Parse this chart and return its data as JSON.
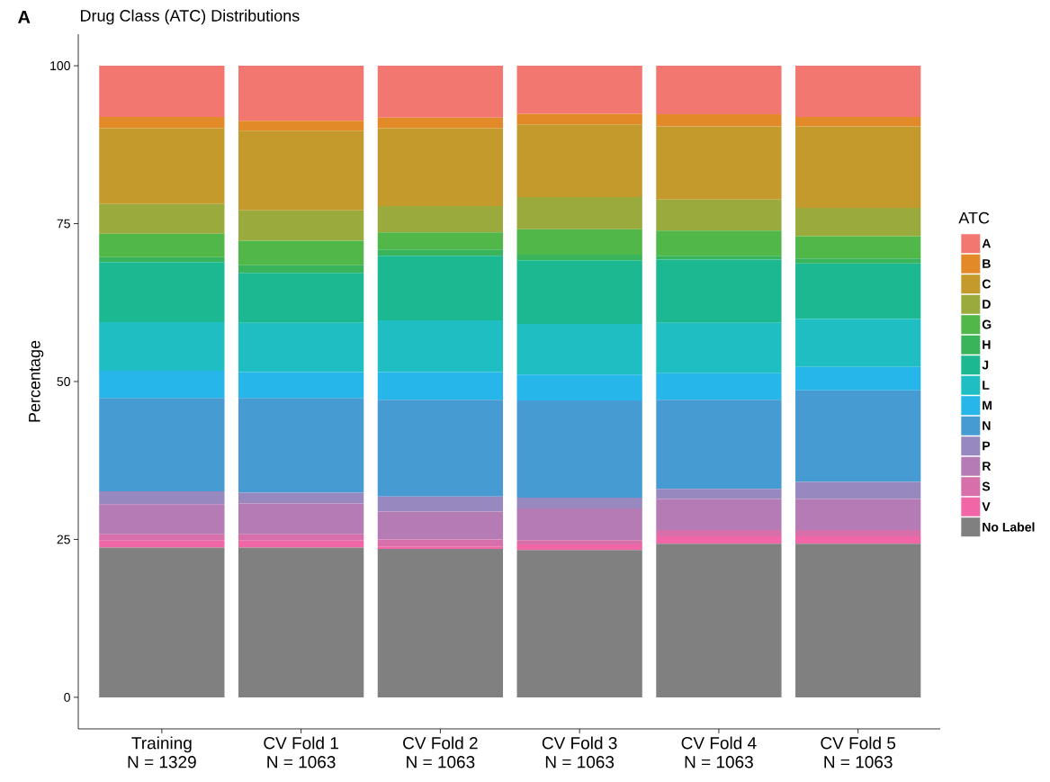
{
  "chart_data": {
    "type": "bar",
    "stacked": true,
    "title": "Drug Class (ATC) Distributions",
    "ylabel": "Percentage",
    "legend_title": "ATC",
    "legend": "right",
    "annotations": [
      "A"
    ],
    "categories": [
      "Training\nN = 1329",
      "CV Fold 1\nN = 1063",
      "CV Fold 2\nN = 1063",
      "CV Fold 3\nN = 1063",
      "CV Fold 4\nN = 1063",
      "CV Fold 5\nN = 1063"
    ],
    "ylim": [
      -5,
      105
    ],
    "yticks": [
      0,
      25,
      50,
      75,
      100
    ],
    "series": [
      {
        "name": "No Label",
        "color": "#808080",
        "values": [
          23.7,
          23.7,
          23.5,
          23.3,
          24.3,
          24.3
        ]
      },
      {
        "name": "V",
        "color": "#F066A6",
        "values": [
          1.1,
          1.1,
          0.4,
          0.9,
          1.2,
          1.2
        ]
      },
      {
        "name": "S",
        "color": "#D770AA",
        "values": [
          1.0,
          1.0,
          1.1,
          0.7,
          1.0,
          1.0
        ]
      },
      {
        "name": "R",
        "color": "#B57BB4",
        "values": [
          4.8,
          4.9,
          4.4,
          5.0,
          4.9,
          4.9
        ]
      },
      {
        "name": "P",
        "color": "#9789C0",
        "values": [
          2.0,
          1.7,
          2.4,
          1.7,
          1.6,
          2.7
        ]
      },
      {
        "name": "N",
        "color": "#469BD3",
        "values": [
          14.8,
          15.0,
          15.3,
          15.4,
          14.1,
          14.5
        ]
      },
      {
        "name": "M",
        "color": "#26B6EA",
        "values": [
          4.3,
          4.1,
          4.4,
          4.1,
          4.2,
          3.7
        ]
      },
      {
        "name": "L",
        "color": "#1FBEC3",
        "values": [
          7.7,
          7.8,
          8.2,
          8.0,
          8.0,
          7.6
        ]
      },
      {
        "name": "J",
        "color": "#1BB891",
        "values": [
          9.5,
          7.9,
          10.2,
          10.1,
          10.0,
          8.8
        ]
      },
      {
        "name": "H",
        "color": "#39B45A",
        "values": [
          0.8,
          1.2,
          1.0,
          0.9,
          0.6,
          0.8
        ]
      },
      {
        "name": "G",
        "color": "#50B748",
        "values": [
          3.7,
          3.9,
          2.7,
          4.0,
          4.0,
          3.5
        ]
      },
      {
        "name": "D",
        "color": "#9AAA3C",
        "values": [
          4.7,
          4.8,
          4.2,
          5.1,
          4.9,
          4.5
        ]
      },
      {
        "name": "C",
        "color": "#C49A2D",
        "values": [
          12.0,
          12.6,
          12.3,
          11.5,
          11.6,
          12.9
        ]
      },
      {
        "name": "B",
        "color": "#E38A28",
        "values": [
          1.8,
          1.6,
          1.7,
          1.7,
          1.9,
          1.5
        ]
      },
      {
        "name": "A",
        "color": "#F17770",
        "values": [
          8.1,
          8.7,
          8.2,
          7.6,
          7.7,
          8.1
        ]
      }
    ]
  }
}
